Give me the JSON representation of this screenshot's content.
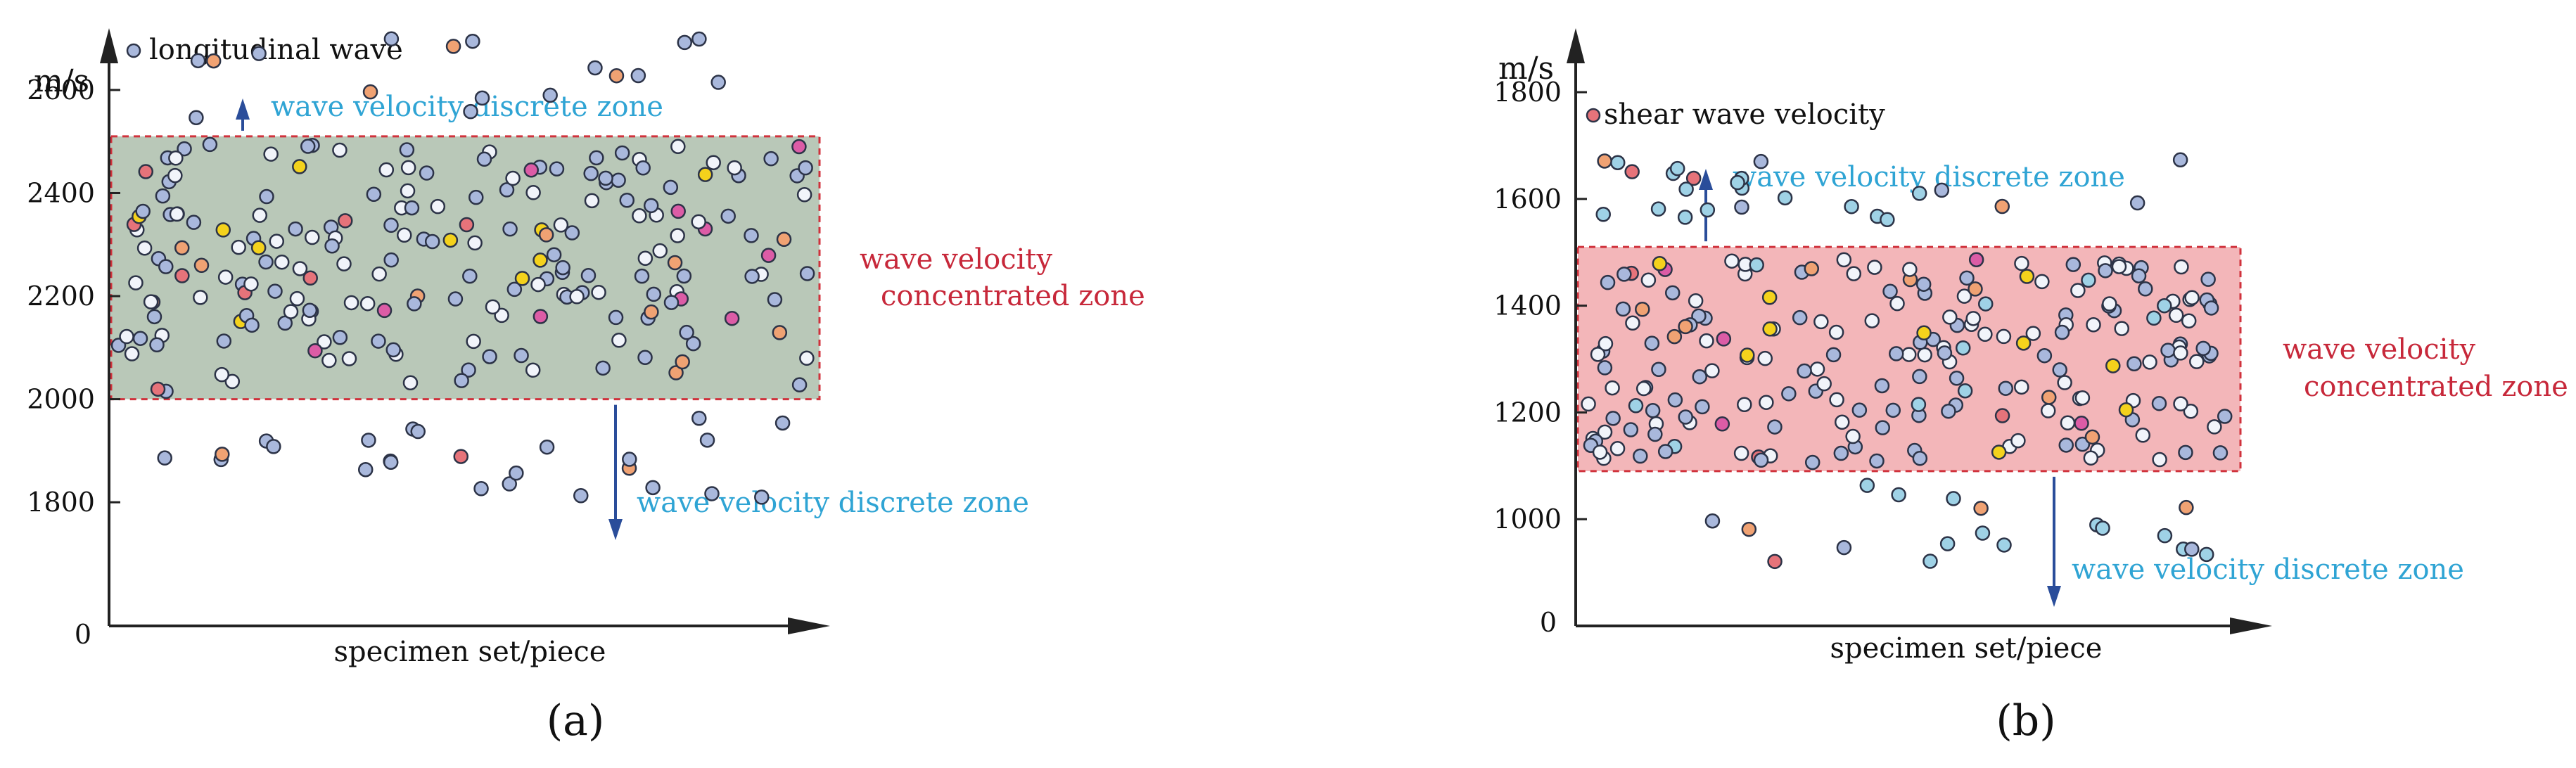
{
  "colors": {
    "axis": "#222222",
    "arrow": "#2a4d9a",
    "discrete_label": "#2fa4d4",
    "concentrated_label": "#c7283a",
    "panel_a_fill": "#b9c8b8",
    "panel_b_fill": "#f3b6b9",
    "zone_border": "#d0323c",
    "point_outline": "#2c3347",
    "point_blue": "#a9b8dc",
    "point_white": "#f1f4fa",
    "point_yellow": "#f4d21c",
    "point_orange": "#f0a273",
    "point_red": "#e6737a",
    "point_pink": "#dc5ca6",
    "point_cyan": "#9fd2e6"
  },
  "chart_data": [
    {
      "type": "scatter",
      "panel_label": "(a)",
      "ylabel": "m/s",
      "xlabel": "specimen set/piece",
      "origin_label": "0",
      "ylim": [
        1560,
        2720
      ],
      "xlim": [
        0,
        100
      ],
      "yticks": [
        1800,
        2000,
        2200,
        2400,
        2600
      ],
      "legend": "longitudinal wave",
      "legend_color": "#a9b8dc",
      "concentrated_zone": {
        "low": 2000,
        "high": 2510,
        "label_line1": "wave velocity",
        "label_line2": "concentrated zone"
      },
      "discrete_labels": {
        "upper": "wave velocity discrete zone",
        "lower": "wave velocity discrete zone"
      },
      "seed": 11,
      "n_concentrated": 205,
      "n_discrete": 42
    },
    {
      "type": "scatter",
      "panel_label": "(b)",
      "ylabel": "m/s",
      "xlabel": "specimen set/piece",
      "origin_label": "0",
      "ylim": [
        800,
        1920
      ],
      "xlim": [
        0,
        100
      ],
      "yticks": [
        1000,
        1200,
        1400,
        1600,
        1800
      ],
      "legend": "shear wave velocity",
      "legend_color": "#e6737a",
      "concentrated_zone": {
        "low": 1090,
        "high": 1510,
        "label_line1": "wave velocity",
        "label_line2": "concentrated zone"
      },
      "discrete_labels": {
        "upper": "wave velocity discrete zone",
        "lower": "wave velocity discrete zone"
      },
      "seed": 29,
      "n_concentrated": 210,
      "n_discrete": 44
    }
  ]
}
